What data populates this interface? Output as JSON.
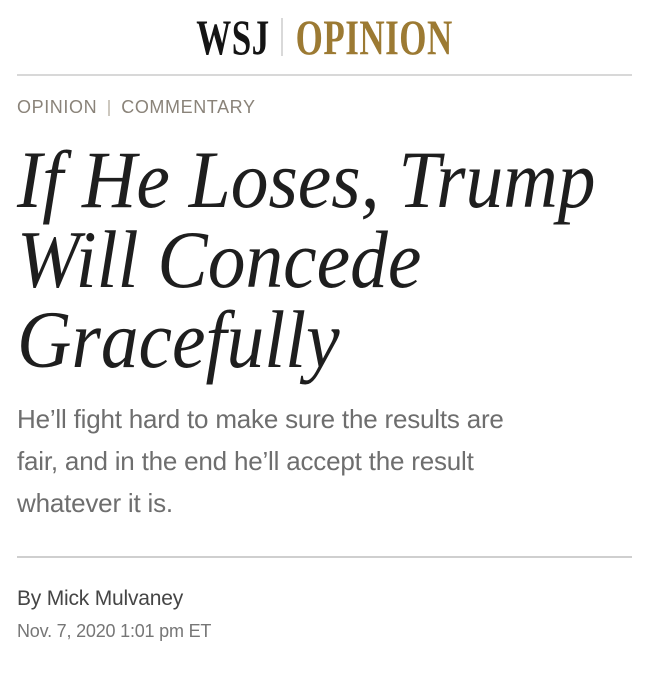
{
  "masthead": {
    "brand": "WSJ",
    "section": "OPINION"
  },
  "breadcrumb": {
    "section": "OPINION",
    "subsection": "COMMENTARY"
  },
  "article": {
    "headline": "If He Loses, Trump Will Concede Gracefully",
    "headline_lines": [
      "If He Loses, Trump",
      "Will Concede",
      "Gracefully"
    ],
    "dek": "He’ll fight hard to make sure the results are fair, and in the end he’ll accept the result whatever it is.",
    "dek_lines": [
      "He’ll fight hard to make sure the results are",
      "fair, and in the end he’ll accept the result",
      "whatever it is."
    ],
    "byline": "By Mick Mulvaney",
    "timestamp": "Nov. 7, 2020 1:01 pm ET"
  },
  "colors": {
    "accent_gold": "#9c7a33",
    "headline_text": "#1e1e1e",
    "dek_text": "#6e6e6e",
    "breadcrumb_text": "#8a8379",
    "byline_text": "#454545",
    "timestamp_text": "#767676",
    "divider": "#d8d8d8"
  }
}
